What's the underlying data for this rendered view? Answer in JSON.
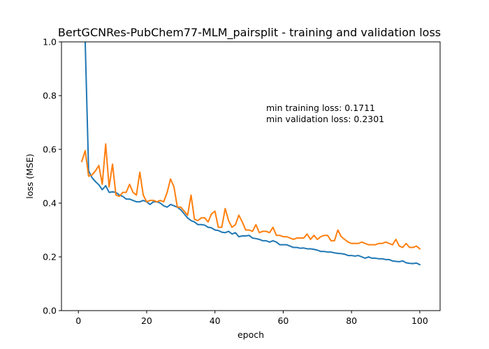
{
  "chart_data": {
    "type": "line",
    "title": "BertGCNRes-PubChem77-MLM_pairsplit - training and validation loss",
    "xlabel": "epoch",
    "ylabel": "loss (MSE)",
    "xlim": [
      -4.95,
      105.95
    ],
    "ylim": [
      0.0,
      1.0
    ],
    "xticks": [
      0,
      20,
      40,
      60,
      80,
      100
    ],
    "yticks": [
      0.0,
      0.2,
      0.4,
      0.6,
      0.8,
      1.0
    ],
    "xtick_labels": [
      "0",
      "20",
      "40",
      "60",
      "80",
      "100"
    ],
    "ytick_labels": [
      "0.0",
      "0.2",
      "0.4",
      "0.6",
      "0.8",
      "1.0"
    ],
    "grid": false,
    "legend": "none",
    "annotations": [
      "min training loss: 0.1711",
      "min validation loss: 0.2301"
    ],
    "x": [
      1,
      2,
      3,
      4,
      5,
      6,
      7,
      8,
      9,
      10,
      11,
      12,
      13,
      14,
      15,
      16,
      17,
      18,
      19,
      20,
      21,
      22,
      23,
      24,
      25,
      26,
      27,
      28,
      29,
      30,
      31,
      32,
      33,
      34,
      35,
      36,
      37,
      38,
      39,
      40,
      41,
      42,
      43,
      44,
      45,
      46,
      47,
      48,
      49,
      50,
      51,
      52,
      53,
      54,
      55,
      56,
      57,
      58,
      59,
      60,
      61,
      62,
      63,
      64,
      65,
      66,
      67,
      68,
      69,
      70,
      71,
      72,
      73,
      74,
      75,
      76,
      77,
      78,
      79,
      80,
      81,
      82,
      83,
      84,
      85,
      86,
      87,
      88,
      89,
      90,
      91,
      92,
      93,
      94,
      95,
      96,
      97,
      98,
      99,
      100
    ],
    "series": [
      {
        "color": "#1f77b4",
        "values": [
          1.95,
          1.0,
          0.52,
          0.495,
          0.48,
          0.468,
          0.45,
          0.465,
          0.44,
          0.442,
          0.44,
          0.43,
          0.425,
          0.415,
          0.415,
          0.41,
          0.405,
          0.405,
          0.41,
          0.405,
          0.395,
          0.405,
          0.405,
          0.4,
          0.39,
          0.385,
          0.395,
          0.39,
          0.385,
          0.375,
          0.36,
          0.345,
          0.335,
          0.33,
          0.32,
          0.32,
          0.318,
          0.31,
          0.308,
          0.3,
          0.298,
          0.292,
          0.29,
          0.295,
          0.285,
          0.29,
          0.275,
          0.278,
          0.278,
          0.28,
          0.27,
          0.268,
          0.265,
          0.26,
          0.26,
          0.255,
          0.26,
          0.255,
          0.245,
          0.245,
          0.245,
          0.24,
          0.235,
          0.235,
          0.232,
          0.233,
          0.23,
          0.23,
          0.228,
          0.225,
          0.22,
          0.22,
          0.218,
          0.218,
          0.215,
          0.213,
          0.212,
          0.21,
          0.205,
          0.205,
          0.203,
          0.205,
          0.2,
          0.195,
          0.2,
          0.195,
          0.195,
          0.193,
          0.193,
          0.19,
          0.19,
          0.185,
          0.183,
          0.182,
          0.185,
          0.178,
          0.176,
          0.175,
          0.177,
          0.1711
        ]
      },
      {
        "color": "#ff7f0e",
        "values": [
          0.555,
          0.595,
          0.5,
          0.505,
          0.52,
          0.54,
          0.47,
          0.62,
          0.46,
          0.545,
          0.43,
          0.425,
          0.44,
          0.44,
          0.47,
          0.44,
          0.43,
          0.515,
          0.43,
          0.405,
          0.41,
          0.41,
          0.405,
          0.41,
          0.405,
          0.44,
          0.49,
          0.46,
          0.385,
          0.385,
          0.37,
          0.355,
          0.43,
          0.34,
          0.335,
          0.345,
          0.345,
          0.33,
          0.36,
          0.37,
          0.31,
          0.31,
          0.38,
          0.335,
          0.31,
          0.32,
          0.355,
          0.33,
          0.3,
          0.3,
          0.295,
          0.32,
          0.29,
          0.295,
          0.295,
          0.29,
          0.31,
          0.28,
          0.28,
          0.275,
          0.275,
          0.27,
          0.265,
          0.27,
          0.27,
          0.27,
          0.285,
          0.265,
          0.28,
          0.265,
          0.275,
          0.28,
          0.28,
          0.26,
          0.26,
          0.3,
          0.275,
          0.265,
          0.255,
          0.25,
          0.25,
          0.25,
          0.255,
          0.25,
          0.245,
          0.245,
          0.245,
          0.25,
          0.25,
          0.255,
          0.25,
          0.245,
          0.265,
          0.24,
          0.235,
          0.25,
          0.235,
          0.235,
          0.24,
          0.2301
        ]
      }
    ]
  }
}
